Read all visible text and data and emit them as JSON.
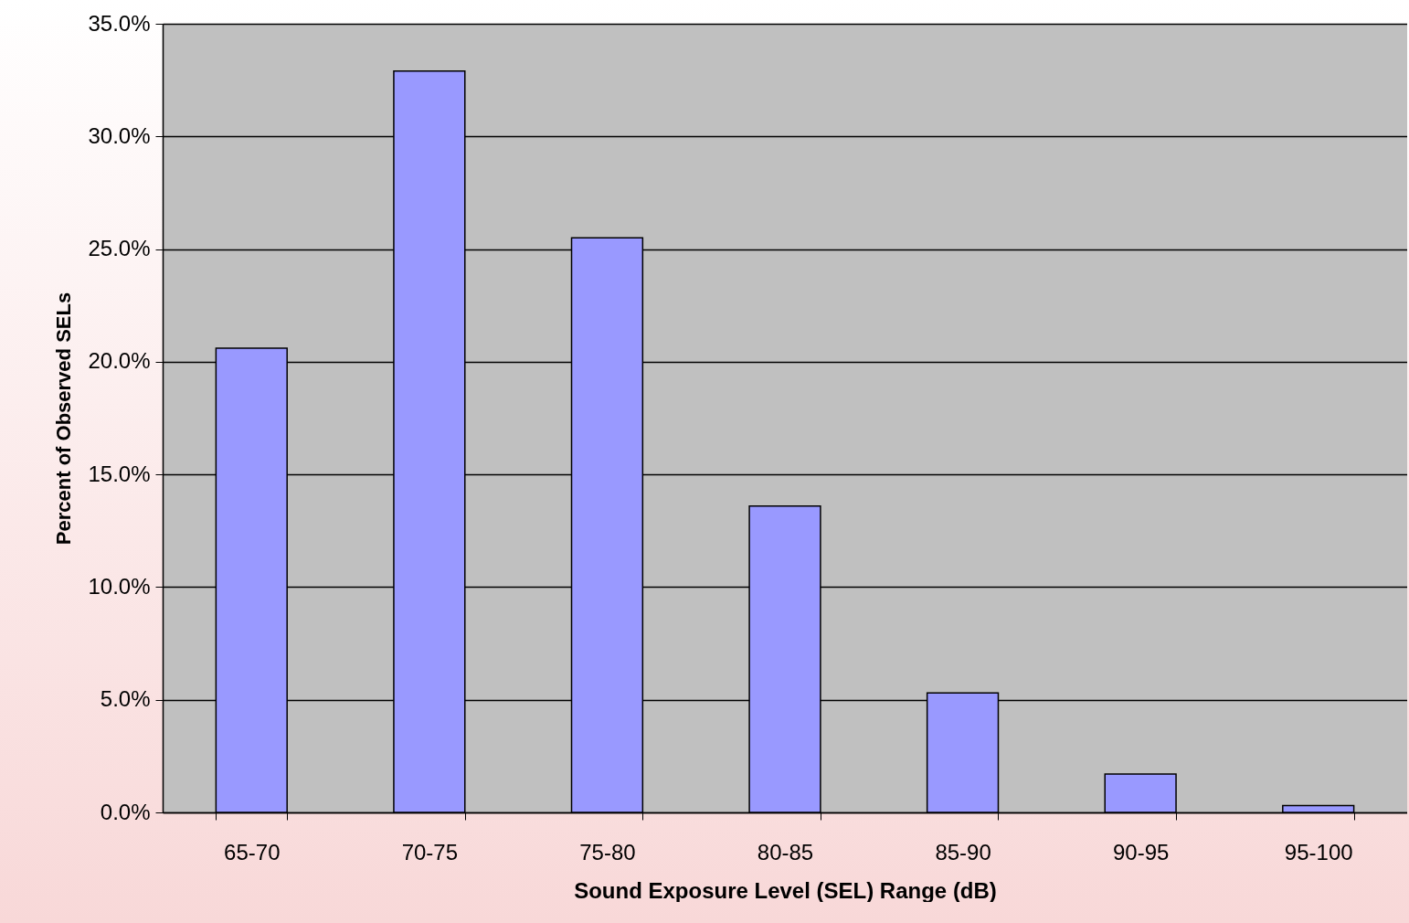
{
  "chart_data": {
    "type": "bar",
    "xlabel": "Sound Exposure Level (SEL) Range (dB)",
    "ylabel": "Percent of Observed SELs",
    "categories": [
      "65-70",
      "70-75",
      "75-80",
      "80-85",
      "85-90",
      "90-95",
      "95-100"
    ],
    "values": [
      20.6,
      32.9,
      25.5,
      13.6,
      5.3,
      1.7,
      0.3
    ],
    "color": "#9999ff",
    "ylim": [
      0,
      35
    ],
    "yticks": [
      {
        "value": 0,
        "label": "0.0%"
      },
      {
        "value": 5,
        "label": "5.0%"
      },
      {
        "value": 10,
        "label": "10.0%"
      },
      {
        "value": 15,
        "label": "15.0%"
      },
      {
        "value": 20,
        "label": "20.0%"
      },
      {
        "value": 25,
        "label": "25.0%"
      },
      {
        "value": 30,
        "label": "30.0%"
      },
      {
        "value": 35,
        "label": "35.0%"
      }
    ],
    "grid": "y"
  }
}
